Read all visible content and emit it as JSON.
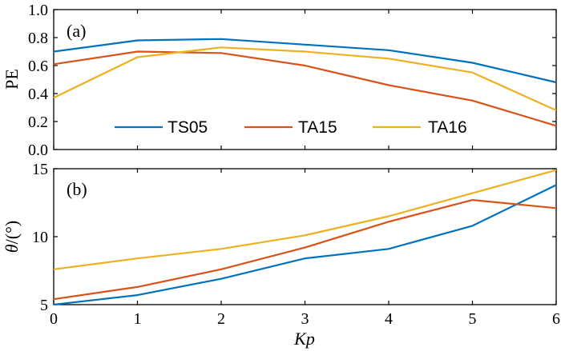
{
  "chart_data": [
    {
      "type": "line",
      "panel_label": "(a)",
      "ylabel": "PE",
      "xlabel": "",
      "xlim": [
        0,
        6
      ],
      "ylim": [
        0.0,
        1.0
      ],
      "x_ticks": [
        "0",
        "1",
        "2",
        "3",
        "4",
        "5",
        "6"
      ],
      "y_ticks": [
        "0.0",
        "0.2",
        "0.4",
        "0.6",
        "0.8",
        "1.0"
      ],
      "legend_position": "bottom-center",
      "x": [
        0,
        1,
        2,
        3,
        4,
        5,
        6
      ],
      "series": [
        {
          "name": "TS05",
          "color": "#0072BD",
          "values": [
            0.7,
            0.78,
            0.79,
            0.75,
            0.71,
            0.62,
            0.48
          ]
        },
        {
          "name": "TA15",
          "color": "#D95319",
          "values": [
            0.61,
            0.7,
            0.69,
            0.6,
            0.46,
            0.35,
            0.17
          ]
        },
        {
          "name": "TA16",
          "color": "#EDB120",
          "values": [
            0.37,
            0.66,
            0.73,
            0.7,
            0.65,
            0.55,
            0.28
          ]
        }
      ]
    },
    {
      "type": "line",
      "panel_label": "(b)",
      "ylabel_symbol": "θ",
      "ylabel_unit": "/(°)",
      "xlabel": "Kp",
      "xlim": [
        0,
        6
      ],
      "ylim": [
        5,
        15
      ],
      "x_ticks": [
        "0",
        "1",
        "2",
        "3",
        "4",
        "5",
        "6"
      ],
      "y_ticks": [
        "5",
        "10",
        "15"
      ],
      "x": [
        0,
        1,
        2,
        3,
        4,
        5,
        6
      ],
      "series": [
        {
          "name": "TS05",
          "color": "#0072BD",
          "values": [
            5.0,
            5.7,
            6.9,
            8.4,
            9.1,
            10.8,
            13.8
          ]
        },
        {
          "name": "TA15",
          "color": "#D95319",
          "values": [
            5.4,
            6.3,
            7.6,
            9.2,
            11.1,
            12.7,
            12.1
          ]
        },
        {
          "name": "TA16",
          "color": "#EDB120",
          "values": [
            7.6,
            8.4,
            9.1,
            10.1,
            11.5,
            13.2,
            14.9
          ]
        }
      ]
    }
  ]
}
